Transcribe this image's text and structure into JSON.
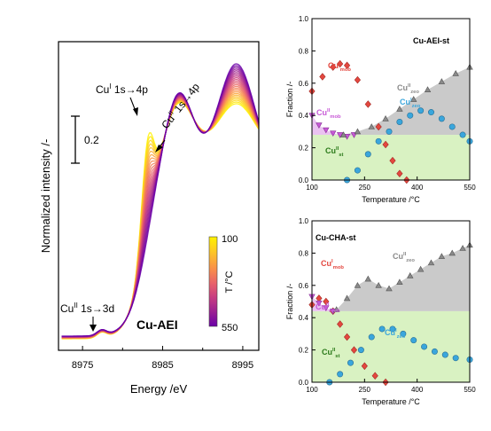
{
  "chart_data": [
    {
      "id": "xanes",
      "type": "line",
      "xlabel": "Energy /eV",
      "ylabel": "Normalized intensity /-",
      "xlim": [
        8972,
        8997
      ],
      "xticks": [
        "8975",
        "8985",
        "8995"
      ],
      "annotations": {
        "label_main": "Cu-AEI",
        "peak1_base": "Cu",
        "peak1_sup": "I",
        "peak1_tail": " 1s→4p",
        "peak2_base": "Cu",
        "peak2_sup": "II",
        "peak2_tail": " 1s→4p",
        "peak3_base": "Cu",
        "peak3_sup": "II",
        "peak3_tail": " 1s→3d",
        "scalebar": "0.2"
      },
      "colorbar": {
        "label": "T /°C",
        "min_label": "100",
        "max_label": "550",
        "colors": [
          "#fff200",
          "#fdc328",
          "#f98e4a",
          "#e8616a",
          "#c63c82",
          "#9a1f92",
          "#6a00a8"
        ]
      },
      "temperature_range_c": [
        100,
        550
      ],
      "n_spectra": 24,
      "hot_peak_height_change": 0.55
    },
    {
      "id": "aei",
      "type": "scatter",
      "title": "Cu-AEI-st",
      "xlabel": "Temperature /°C",
      "ylabel": "Fraction /-",
      "xlim": [
        100,
        550
      ],
      "ylim": [
        0,
        1.0
      ],
      "xticks": [
        "100",
        "250",
        "400",
        "550"
      ],
      "yticks": [
        "0.0",
        "0.2",
        "0.4",
        "0.6",
        "0.8",
        "1.0"
      ],
      "st_level": 0.28,
      "series": [
        {
          "name_base": "Cu",
          "name_sup": "I",
          "name_sub": "mob",
          "color": "#e4473f",
          "marker": "diamond",
          "x": [
            100,
            130,
            160,
            180,
            200,
            230,
            260,
            290,
            310,
            330,
            350,
            370
          ],
          "y": [
            0.55,
            0.64,
            0.7,
            0.72,
            0.71,
            0.62,
            0.47,
            0.33,
            0.22,
            0.12,
            0.04,
            0.0
          ]
        },
        {
          "name_base": "Cu",
          "name_sup": "II",
          "name_sub": "mob",
          "color": "#c758d6",
          "marker": "triangle_down",
          "x": [
            100,
            120,
            140,
            160,
            180,
            200,
            220
          ],
          "y": [
            0.4,
            0.34,
            0.31,
            0.29,
            0.28,
            0.27,
            0.28
          ]
        },
        {
          "name_base": "Cu",
          "name_sup": "I",
          "name_sub": "zeo",
          "color": "#3aa6dc",
          "marker": "circle",
          "x": [
            200,
            230,
            260,
            290,
            320,
            350,
            380,
            410,
            440,
            470,
            500,
            530,
            550
          ],
          "y": [
            0.0,
            0.06,
            0.16,
            0.24,
            0.3,
            0.36,
            0.4,
            0.43,
            0.42,
            0.38,
            0.33,
            0.28,
            0.24
          ]
        },
        {
          "name_base": "Cu",
          "name_sup": "II",
          "name_sub": "zeo",
          "color": "#8a8a8a",
          "marker": "triangle_up",
          "x": [
            190,
            230,
            270,
            310,
            350,
            390,
            430,
            470,
            510,
            550
          ],
          "y": [
            0.28,
            0.3,
            0.33,
            0.38,
            0.44,
            0.5,
            0.56,
            0.61,
            0.66,
            0.7
          ]
        }
      ],
      "fill_label_base": "Cu",
      "fill_label_sup": "II",
      "fill_label_sub": "st"
    },
    {
      "id": "cha",
      "type": "scatter",
      "title": "Cu-CHA-st",
      "xlabel": "Temperature /°C",
      "ylabel": "Fraction /-",
      "xlim": [
        100,
        550
      ],
      "ylim": [
        0,
        1.0
      ],
      "xticks": [
        "100",
        "250",
        "400",
        "550"
      ],
      "yticks": [
        "0.0",
        "0.2",
        "0.4",
        "0.6",
        "0.8",
        "1.0"
      ],
      "st_level": 0.44,
      "series": [
        {
          "name_base": "Cu",
          "name_sup": "I",
          "name_sub": "mob",
          "color": "#e4473f",
          "marker": "diamond",
          "x": [
            100,
            120,
            140,
            160,
            180,
            200,
            220,
            250,
            280,
            310
          ],
          "y": [
            0.48,
            0.52,
            0.5,
            0.44,
            0.36,
            0.28,
            0.2,
            0.1,
            0.04,
            0.0
          ]
        },
        {
          "name_base": "Cu",
          "name_sup": "II",
          "name_sub": "mob",
          "color": "#c758d6",
          "marker": "triangle_down",
          "x": [
            100,
            120,
            140,
            160
          ],
          "y": [
            0.53,
            0.49,
            0.46,
            0.44
          ]
        },
        {
          "name_base": "Cu",
          "name_sup": "I",
          "name_sub": "zeo",
          "color": "#3aa6dc",
          "marker": "circle",
          "x": [
            150,
            180,
            210,
            240,
            270,
            300,
            330,
            360,
            390,
            420,
            450,
            480,
            510,
            550
          ],
          "y": [
            0.0,
            0.05,
            0.12,
            0.2,
            0.28,
            0.33,
            0.33,
            0.3,
            0.26,
            0.22,
            0.19,
            0.17,
            0.15,
            0.14
          ]
        },
        {
          "name_base": "Cu",
          "name_sup": "II",
          "name_sub": "zeo",
          "color": "#8a8a8a",
          "marker": "triangle_up",
          "x": [
            170,
            200,
            230,
            260,
            290,
            320,
            350,
            380,
            410,
            440,
            470,
            500,
            530,
            550
          ],
          "y": [
            0.45,
            0.52,
            0.6,
            0.64,
            0.6,
            0.58,
            0.62,
            0.66,
            0.7,
            0.74,
            0.78,
            0.8,
            0.83,
            0.85
          ]
        }
      ],
      "fill_label_base": "Cu",
      "fill_label_sup": "II",
      "fill_label_sub": "st"
    }
  ]
}
